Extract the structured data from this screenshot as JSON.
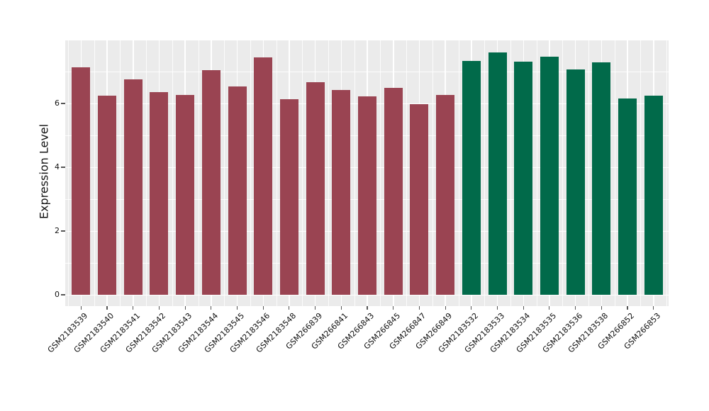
{
  "chart_data": {
    "type": "bar",
    "title": "",
    "xlabel": "",
    "ylabel": "Expression Level",
    "ylim": [
      0,
      7.98
    ],
    "yticks_major": [
      0,
      2,
      4,
      6
    ],
    "yticks_minor": [
      1,
      3,
      5,
      7
    ],
    "grid": "on",
    "legend": "none",
    "x_tick_rotation": 45,
    "panel_bg": "#EBEBEB",
    "grid_color": "#FFFFFF",
    "tick_color": "#555555",
    "label_color": "#111111",
    "group_colors": {
      "group_1": "#9A4452",
      "group_2": "#016A4A"
    },
    "categories": [
      "GSM2183539",
      "GSM2183540",
      "GSM2183541",
      "GSM2183542",
      "GSM2183543",
      "GSM2183544",
      "GSM2183545",
      "GSM2183546",
      "GSM2183548",
      "GSM266839",
      "GSM266841",
      "GSM266843",
      "GSM266845",
      "GSM266847",
      "GSM266849",
      "GSM2183532",
      "GSM2183533",
      "GSM2183534",
      "GSM2183535",
      "GSM2183536",
      "GSM2183538",
      "GSM266852",
      "GSM266853"
    ],
    "values": [
      7.13,
      6.24,
      6.76,
      6.35,
      6.27,
      7.04,
      6.54,
      7.45,
      6.13,
      6.67,
      6.43,
      6.22,
      6.5,
      5.97,
      6.27,
      7.34,
      7.6,
      7.32,
      7.46,
      7.07,
      7.3,
      6.16,
      6.24
    ],
    "bar_colors": [
      "#9A4452",
      "#9A4452",
      "#9A4452",
      "#9A4452",
      "#9A4452",
      "#9A4452",
      "#9A4452",
      "#9A4452",
      "#9A4452",
      "#9A4452",
      "#9A4452",
      "#9A4452",
      "#9A4452",
      "#9A4452",
      "#9A4452",
      "#016A4A",
      "#016A4A",
      "#016A4A",
      "#016A4A",
      "#016A4A",
      "#016A4A",
      "#016A4A",
      "#016A4A"
    ]
  }
}
